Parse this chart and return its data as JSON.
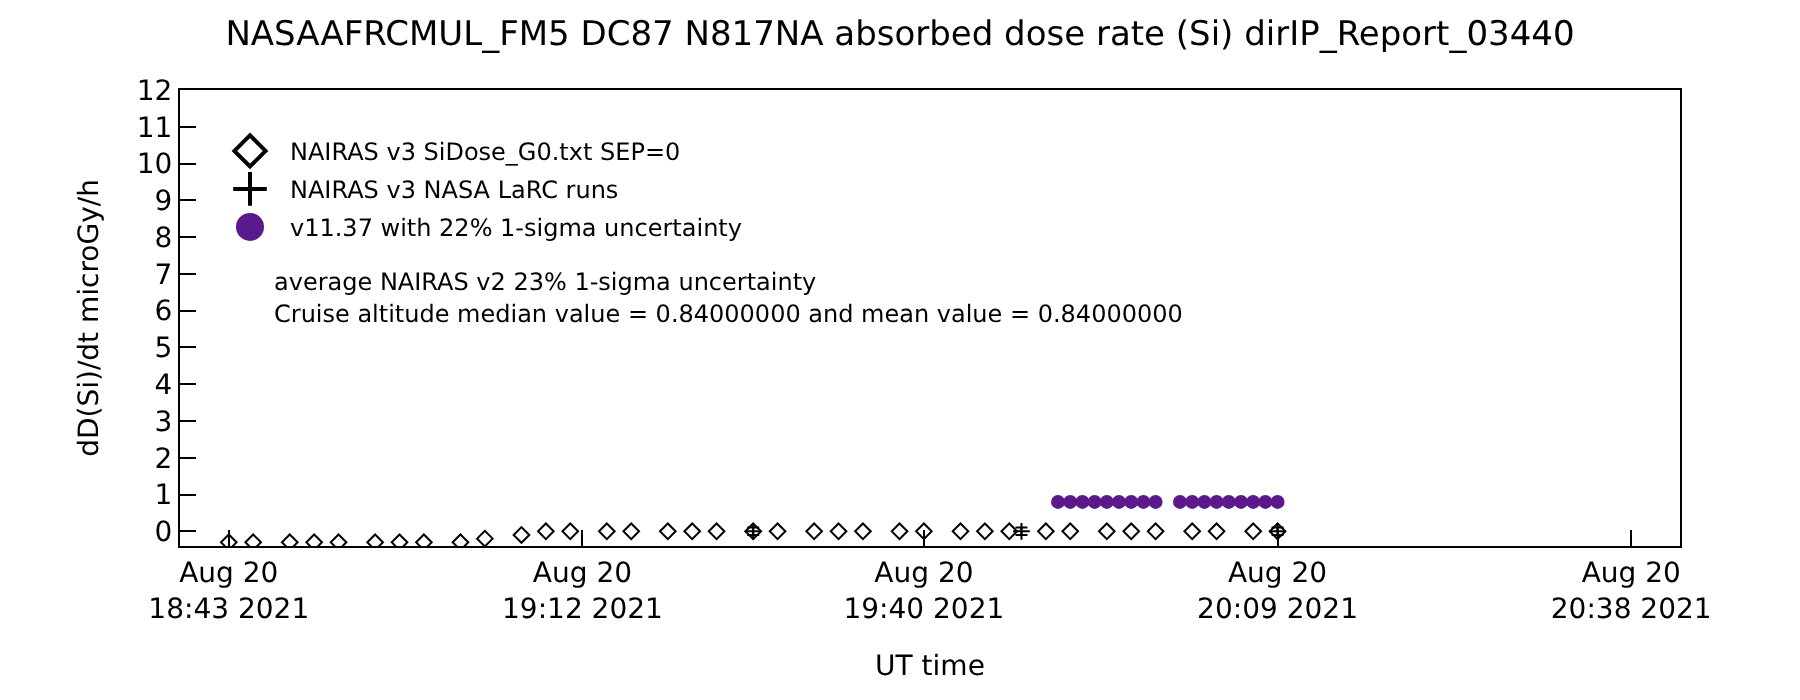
{
  "chart_data": {
    "type": "scatter",
    "title": "NASAAFRCMUL_FM5 DC87 N817NA absorbed dose rate (Si) dirIP_Report_03440",
    "xlabel": "UT time",
    "ylabel": "dD(Si)/dt microGy/h",
    "xlim": [
      "2021-08-20T18:39",
      "2021-08-20T20:42"
    ],
    "ylim": [
      -0.4,
      12
    ],
    "xticks": [
      {
        "value": "2021-08-20T18:43",
        "label": "Aug 20\n18:43 2021"
      },
      {
        "value": "2021-08-20T19:12",
        "label": "Aug 20\n19:12 2021"
      },
      {
        "value": "2021-08-20T19:40",
        "label": "Aug 20\n19:40 2021"
      },
      {
        "value": "2021-08-20T20:09",
        "label": "Aug 20\n20:09 2021"
      },
      {
        "value": "2021-08-20T20:38",
        "label": "Aug 20\n20:38 2021"
      }
    ],
    "yticks": [
      0,
      1,
      2,
      3,
      4,
      5,
      6,
      7,
      8,
      9,
      10,
      11,
      12
    ],
    "legend": "top left",
    "series": [
      {
        "name": "NAIRAS v3 SiDose_G0.txt SEP=0",
        "color": "#000000",
        "marker": "diamond",
        "x": [
          "2021-08-20T18:43",
          "2021-08-20T18:45",
          "2021-08-20T18:48",
          "2021-08-20T18:50",
          "2021-08-20T18:52",
          "2021-08-20T18:55",
          "2021-08-20T18:57",
          "2021-08-20T18:59",
          "2021-08-20T19:02",
          "2021-08-20T19:04",
          "2021-08-20T19:07",
          "2021-08-20T19:09",
          "2021-08-20T19:11",
          "2021-08-20T19:14",
          "2021-08-20T19:16",
          "2021-08-20T19:19",
          "2021-08-20T19:21",
          "2021-08-20T19:23",
          "2021-08-20T19:26",
          "2021-08-20T19:28",
          "2021-08-20T19:31",
          "2021-08-20T19:33",
          "2021-08-20T19:35",
          "2021-08-20T19:38",
          "2021-08-20T19:40",
          "2021-08-20T19:43",
          "2021-08-20T19:45",
          "2021-08-20T19:47",
          "2021-08-20T19:50",
          "2021-08-20T19:52",
          "2021-08-20T19:55",
          "2021-08-20T19:57",
          "2021-08-20T19:59",
          "2021-08-20T20:02",
          "2021-08-20T20:04",
          "2021-08-20T20:07",
          "2021-08-20T20:09"
        ],
        "values": [
          -0.3,
          -0.3,
          -0.3,
          -0.3,
          -0.3,
          -0.3,
          -0.3,
          -0.3,
          -0.3,
          -0.2,
          -0.1,
          0.0,
          0.0,
          0.0,
          0.0,
          0.0,
          0.0,
          0.0,
          0.0,
          0.0,
          0.0,
          0.0,
          0.0,
          0.0,
          0.0,
          0.0,
          0.0,
          0.0,
          0.0,
          0.0,
          0.0,
          0.0,
          0.0,
          0.0,
          0.0,
          0.0,
          0.0
        ]
      },
      {
        "name": "NAIRAS v3 NASA LaRC runs",
        "color": "#000000",
        "marker": "cross",
        "x": [
          "2021-08-20T19:26",
          "2021-08-20T19:48",
          "2021-08-20T20:09"
        ],
        "values": [
          0.0,
          0.0,
          0.0
        ],
        "errors": [
          0.1,
          0.1,
          0.1
        ]
      },
      {
        "name": "v11.37 with 22% 1-sigma uncertainty",
        "color": "#5b1a8c",
        "marker": "circle",
        "x": [
          "2021-08-20T19:51",
          "2021-08-20T19:52",
          "2021-08-20T19:53",
          "2021-08-20T19:54",
          "2021-08-20T19:55",
          "2021-08-20T19:56",
          "2021-08-20T19:57",
          "2021-08-20T19:58",
          "2021-08-20T19:59",
          "2021-08-20T20:01",
          "2021-08-20T20:02",
          "2021-08-20T20:03",
          "2021-08-20T20:04",
          "2021-08-20T20:05",
          "2021-08-20T20:06",
          "2021-08-20T20:07",
          "2021-08-20T20:08",
          "2021-08-20T20:09"
        ],
        "values": [
          0.8,
          0.8,
          0.8,
          0.8,
          0.8,
          0.8,
          0.8,
          0.8,
          0.8,
          0.8,
          0.8,
          0.8,
          0.8,
          0.8,
          0.8,
          0.8,
          0.8,
          0.8
        ]
      }
    ],
    "annotations": [
      "average NAIRAS v2 23% 1-sigma uncertainty",
      "Cruise altitude median value = 0.84000000 and mean value = 0.84000000"
    ]
  }
}
